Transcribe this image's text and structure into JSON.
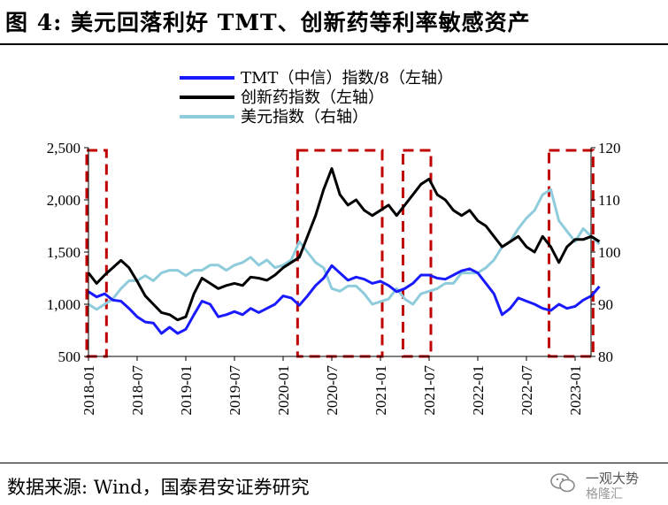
{
  "header": {
    "title": "图 4:  美元回落利好 TMT、创新药等利率敏感资产"
  },
  "footer": {
    "source": "数据来源:  Wind，国泰君安证券研究",
    "watermark_line1": "一观大势",
    "watermark_line2": "格隆汇"
  },
  "chart_data": {
    "type": "line",
    "title": "",
    "xlabel": "",
    "ylabel_left": "",
    "ylabel_right": "",
    "ylim_left": [
      500,
      2500
    ],
    "ylim_right": [
      80,
      120
    ],
    "yticks_left": [
      "500",
      "1,000",
      "1,500",
      "2,000",
      "2,500"
    ],
    "yticks_right": [
      "80",
      "90",
      "100",
      "110",
      "120"
    ],
    "xticks": [
      "2018-01",
      "2018-07",
      "2019-01",
      "2019-07",
      "2020-01",
      "2020-07",
      "2021-01",
      "2021-07",
      "2022-01",
      "2022-07",
      "2023-01"
    ],
    "legend_position": "top",
    "grid": false,
    "series": [
      {
        "name": "TMT（中信）指数/8（左轴）",
        "axis": "left",
        "color": "#1a1aff",
        "x": [
          "2018-01",
          "2018-02",
          "2018-03",
          "2018-04",
          "2018-05",
          "2018-06",
          "2018-07",
          "2018-08",
          "2018-09",
          "2018-10",
          "2018-11",
          "2018-12",
          "2019-01",
          "2019-02",
          "2019-03",
          "2019-04",
          "2019-05",
          "2019-06",
          "2019-07",
          "2019-08",
          "2019-09",
          "2019-10",
          "2019-11",
          "2019-12",
          "2020-01",
          "2020-02",
          "2020-03",
          "2020-04",
          "2020-05",
          "2020-06",
          "2020-07",
          "2020-08",
          "2020-09",
          "2020-10",
          "2020-11",
          "2020-12",
          "2021-01",
          "2021-02",
          "2021-03",
          "2021-04",
          "2021-05",
          "2021-06",
          "2021-07",
          "2021-08",
          "2021-09",
          "2021-10",
          "2021-11",
          "2021-12",
          "2022-01",
          "2022-02",
          "2022-03",
          "2022-04",
          "2022-05",
          "2022-06",
          "2022-07",
          "2022-08",
          "2022-09",
          "2022-10",
          "2022-11",
          "2022-12",
          "2023-01",
          "2023-02",
          "2023-03",
          "2023-04"
        ],
        "values": [
          1120,
          1070,
          1100,
          1040,
          1030,
          960,
          880,
          830,
          820,
          720,
          780,
          720,
          760,
          900,
          1030,
          1000,
          880,
          900,
          930,
          900,
          960,
          920,
          960,
          1000,
          1080,
          1060,
          990,
          1080,
          1180,
          1250,
          1370,
          1300,
          1230,
          1260,
          1240,
          1200,
          1220,
          1180,
          1120,
          1150,
          1200,
          1280,
          1280,
          1250,
          1240,
          1280,
          1320,
          1340,
          1300,
          1200,
          1100,
          900,
          960,
          1060,
          1030,
          1000,
          960,
          940,
          1000,
          960,
          980,
          1040,
          1080,
          1170
        ]
      },
      {
        "name": "创新药指数（左轴）",
        "axis": "left",
        "color": "#000000",
        "x": [
          "2018-01",
          "2018-02",
          "2018-03",
          "2018-04",
          "2018-05",
          "2018-06",
          "2018-07",
          "2018-08",
          "2018-09",
          "2018-10",
          "2018-11",
          "2018-12",
          "2019-01",
          "2019-02",
          "2019-03",
          "2019-04",
          "2019-05",
          "2019-06",
          "2019-07",
          "2019-08",
          "2019-09",
          "2019-10",
          "2019-11",
          "2019-12",
          "2020-01",
          "2020-02",
          "2020-03",
          "2020-04",
          "2020-05",
          "2020-06",
          "2020-07",
          "2020-08",
          "2020-09",
          "2020-10",
          "2020-11",
          "2020-12",
          "2021-01",
          "2021-02",
          "2021-03",
          "2021-04",
          "2021-05",
          "2021-06",
          "2021-07",
          "2021-08",
          "2021-09",
          "2021-10",
          "2021-11",
          "2021-12",
          "2022-01",
          "2022-02",
          "2022-03",
          "2022-04",
          "2022-05",
          "2022-06",
          "2022-07",
          "2022-08",
          "2022-09",
          "2022-10",
          "2022-11",
          "2022-12",
          "2023-01",
          "2023-02",
          "2023-03",
          "2023-04"
        ],
        "values": [
          1300,
          1200,
          1280,
          1350,
          1420,
          1350,
          1220,
          1080,
          1000,
          920,
          900,
          850,
          880,
          1100,
          1250,
          1200,
          1150,
          1180,
          1200,
          1180,
          1260,
          1250,
          1230,
          1280,
          1350,
          1400,
          1450,
          1650,
          1850,
          2100,
          2300,
          2050,
          1950,
          2000,
          1900,
          1850,
          1900,
          1950,
          1850,
          1950,
          2050,
          2150,
          2200,
          2050,
          2000,
          1900,
          1850,
          1900,
          1800,
          1750,
          1650,
          1550,
          1600,
          1650,
          1550,
          1500,
          1650,
          1550,
          1400,
          1550,
          1620,
          1620,
          1650,
          1600
        ]
      },
      {
        "name": "美元指数（右轴）",
        "axis": "right",
        "color": "#8ecbdb",
        "x": [
          "2018-01",
          "2018-02",
          "2018-03",
          "2018-04",
          "2018-05",
          "2018-06",
          "2018-07",
          "2018-08",
          "2018-09",
          "2018-10",
          "2018-11",
          "2018-12",
          "2019-01",
          "2019-02",
          "2019-03",
          "2019-04",
          "2019-05",
          "2019-06",
          "2019-07",
          "2019-08",
          "2019-09",
          "2019-10",
          "2019-11",
          "2019-12",
          "2020-01",
          "2020-02",
          "2020-03",
          "2020-04",
          "2020-05",
          "2020-06",
          "2020-07",
          "2020-08",
          "2020-09",
          "2020-10",
          "2020-11",
          "2020-12",
          "2021-01",
          "2021-02",
          "2021-03",
          "2021-04",
          "2021-05",
          "2021-06",
          "2021-07",
          "2021-08",
          "2021-09",
          "2021-10",
          "2021-11",
          "2021-12",
          "2022-01",
          "2022-02",
          "2022-03",
          "2022-04",
          "2022-05",
          "2022-06",
          "2022-07",
          "2022-08",
          "2022-09",
          "2022-10",
          "2022-11",
          "2022-12",
          "2023-01",
          "2023-02",
          "2023-03",
          "2023-04"
        ],
        "values": [
          90,
          89,
          90,
          91,
          93,
          94.5,
          94.5,
          95.5,
          94.5,
          96,
          96.5,
          96.5,
          95.5,
          96.5,
          96.5,
          97.5,
          97.5,
          96.5,
          97.5,
          98,
          99,
          97.5,
          98.5,
          97,
          97.5,
          98.5,
          102,
          100,
          98,
          97,
          93,
          92.5,
          93.5,
          93.5,
          92,
          90,
          90.5,
          91,
          93,
          91,
          90,
          92,
          92.5,
          93,
          94,
          94,
          96,
          96,
          96,
          97,
          98.5,
          101,
          102,
          104.5,
          106.5,
          108,
          111,
          112,
          106,
          104,
          102,
          104.5,
          103,
          101.5
        ]
      }
    ],
    "highlight_periods": [
      {
        "start": "2018-01",
        "end": "2018-03"
      },
      {
        "start": "2020-03",
        "end": "2021-01"
      },
      {
        "start": "2021-04",
        "end": "2021-07"
      },
      {
        "start": "2022-10",
        "end": "2023-03"
      }
    ]
  }
}
